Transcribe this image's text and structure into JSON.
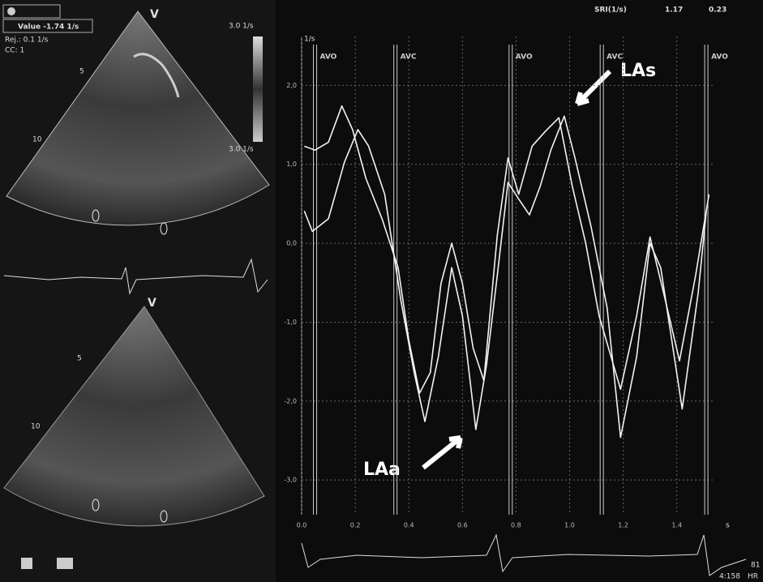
{
  "chart_data": {
    "type": "line",
    "y_unit": "1/s",
    "x_unit": "s",
    "xlim": [
      0,
      1.54
    ],
    "ylim": [
      -3.44,
      2.62
    ],
    "xticks": [
      {
        "value": 0,
        "label": "0.0"
      },
      0.2,
      0.4,
      0.6,
      0.8,
      {
        "value": 1,
        "label": "1.0"
      },
      1.2,
      1.4
    ],
    "yticks": [
      {
        "value": 2,
        "label": "2,0"
      },
      {
        "value": 1,
        "label": "1,0"
      },
      {
        "value": 0,
        "label": "0,0"
      },
      {
        "value": -1,
        "label": "-1,0"
      },
      {
        "value": -2,
        "label": "-2,0"
      },
      {
        "value": -3,
        "label": "-3,0"
      }
    ],
    "grid": true,
    "events": [
      {
        "label": "AVO",
        "x": 0.05
      },
      {
        "label": "AVC",
        "x": 0.35
      },
      {
        "label": "AVO",
        "x": 0.78
      },
      {
        "label": "AVC",
        "x": 1.12
      },
      {
        "label": "AVO",
        "x": 1.51
      }
    ],
    "annotations": [
      "LAs",
      "LAa"
    ],
    "series": [
      {
        "color": "#f2f2f2",
        "x": [
          0.01,
          0.05,
          0.1,
          0.15,
          0.19,
          0.24,
          0.3,
          0.36,
          0.4,
          0.44,
          0.48,
          0.52,
          0.56,
          0.6,
          0.64,
          0.68,
          0.73,
          0.77,
          0.81,
          0.86,
          0.91,
          0.96,
          1.01,
          1.06,
          1.11,
          1.19,
          1.25,
          1.3,
          1.35,
          1.41,
          1.47,
          1.52
        ],
        "values": [
          1.23,
          1.18,
          1.28,
          1.74,
          1.44,
          0.82,
          0.31,
          -0.31,
          -1.23,
          -1.9,
          -1.64,
          -0.51,
          0.0,
          -0.51,
          -1.33,
          -1.74,
          0.1,
          1.08,
          0.62,
          1.23,
          1.42,
          1.59,
          0.72,
          0.0,
          -0.92,
          -1.85,
          -0.92,
          0.08,
          -0.62,
          -1.49,
          -0.41,
          0.62
        ]
      },
      {
        "color": "#f2f2f2",
        "x": [
          0.01,
          0.04,
          0.1,
          0.16,
          0.21,
          0.25,
          0.31,
          0.37,
          0.42,
          0.46,
          0.51,
          0.56,
          0.6,
          0.65,
          0.69,
          0.73,
          0.77,
          0.81,
          0.85,
          0.89,
          0.93,
          0.98,
          1.02,
          1.08,
          1.14,
          1.19,
          1.25,
          1.3,
          1.34,
          1.42,
          1.48,
          1.51
        ],
        "values": [
          0.41,
          0.15,
          0.31,
          1.03,
          1.44,
          1.23,
          0.62,
          -0.72,
          -1.64,
          -2.26,
          -1.44,
          -0.31,
          -0.92,
          -2.36,
          -1.54,
          -0.41,
          0.77,
          0.56,
          0.36,
          0.72,
          1.18,
          1.61,
          1.08,
          0.21,
          -0.82,
          -2.46,
          -1.44,
          0.0,
          -0.31,
          -2.1,
          -0.62,
          0.41
        ]
      }
    ]
  },
  "ui": {
    "value_readout": "Value -1.74 1/s",
    "rejection": "Rej.: 0.1 1/s",
    "cc": "CC: 1",
    "top_image": {
      "label": "V",
      "depth_marks": [
        "5",
        "10"
      ],
      "scale_top": "3.0 1/s",
      "scale_bottom": "3.0 1/s"
    },
    "bottom_image": {
      "label": "V",
      "depth_marks": [
        "5",
        "10"
      ]
    },
    "header": {
      "label": "SRI(1/s)",
      "value_1": "1.17",
      "value_2": "0.23"
    },
    "footer": {
      "time": "4:158",
      "hr_value": "81",
      "hr_label": "HR"
    }
  }
}
